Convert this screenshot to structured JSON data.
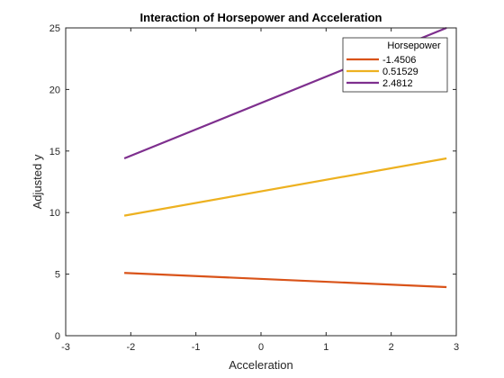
{
  "chart_data": {
    "type": "line",
    "title": "Interaction of Horsepower and Acceleration",
    "xlabel": "Acceleration",
    "ylabel": "Adjusted y",
    "xlim": [
      -3,
      3
    ],
    "ylim": [
      0,
      25
    ],
    "xticks": [
      "-3",
      "-2",
      "-1",
      "0",
      "1",
      "2",
      "3"
    ],
    "yticks": [
      "0",
      "5",
      "10",
      "15",
      "20",
      "25"
    ],
    "grid": false,
    "legend": {
      "title": "Horsepower",
      "placement": "top-right"
    },
    "series": [
      {
        "name": "-1.4506",
        "color": "#D95319",
        "x": [
          -2.1,
          2.85
        ],
        "y": [
          5.1,
          3.95
        ]
      },
      {
        "name": "0.51529",
        "color": "#EDB120",
        "x": [
          -2.1,
          2.85
        ],
        "y": [
          9.75,
          14.4
        ]
      },
      {
        "name": "2.4812",
        "color": "#7E2F8E",
        "x": [
          -2.1,
          2.85
        ],
        "y": [
          14.4,
          25.0
        ]
      }
    ]
  }
}
